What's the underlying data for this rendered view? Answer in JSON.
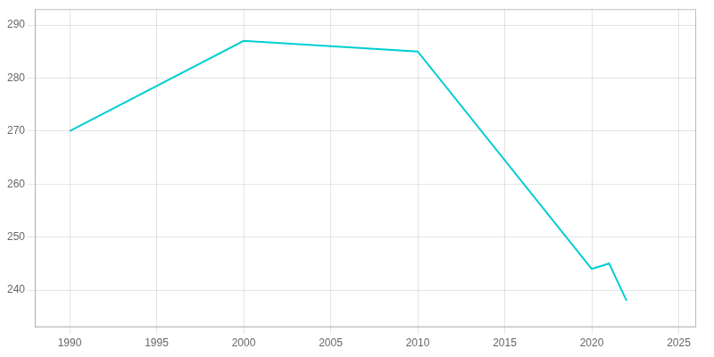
{
  "chart_data": {
    "type": "line",
    "x": [
      1990,
      2000,
      2005,
      2010,
      2020,
      2021,
      2022
    ],
    "values": [
      270,
      287,
      286,
      285,
      244,
      245,
      238
    ],
    "color": "#00CED1",
    "xlim": [
      1988,
      2026
    ],
    "ylim": [
      233,
      293
    ],
    "xticks": [
      1990,
      1995,
      2000,
      2005,
      2010,
      2015,
      2020,
      2025
    ],
    "yticks": [
      240,
      250,
      260,
      270,
      280,
      290
    ],
    "grid": true
  }
}
